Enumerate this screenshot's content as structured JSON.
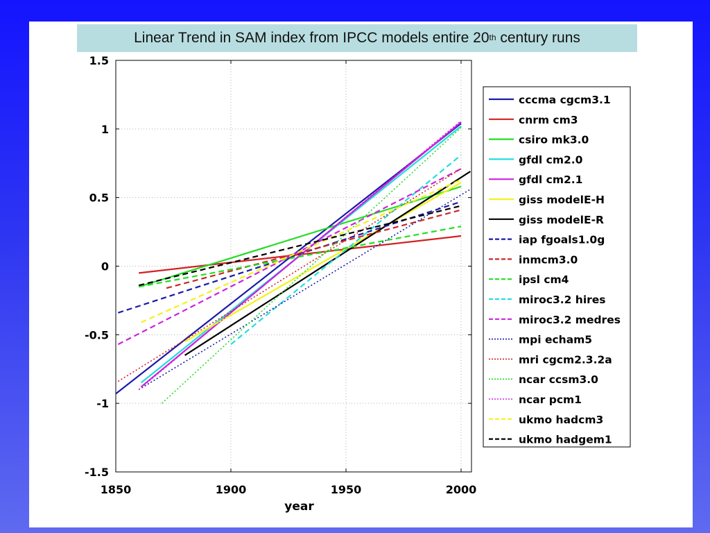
{
  "title": {
    "main": "Linear Trend in SAM index from IPCC models entire 20",
    "sup": "th",
    "tail": " century runs"
  },
  "chart_data": {
    "type": "line",
    "title": "Linear Trend in SAM index from IPCC models entire 20th century runs",
    "xlabel": "year",
    "ylabel": "",
    "xlim": [
      1850,
      2005
    ],
    "ylim": [
      -1.5,
      1.5
    ],
    "xticks": [
      1850,
      1900,
      1950,
      2000
    ],
    "yticks": [
      -1.5,
      -1,
      -0.5,
      0,
      0.5,
      1,
      1.5
    ],
    "xtick_labels": [
      "1850",
      "1900",
      "1950",
      "2000"
    ],
    "ytick_labels": [
      "-1.5",
      "-1",
      "-0.5",
      "0",
      "0.5",
      "1",
      "1.5"
    ],
    "grid": true,
    "legend_position": "right",
    "series": [
      {
        "name": "cccma cgcm3.1",
        "color": "#1a1aa8",
        "style": "solid",
        "x": [
          1850,
          2000
        ],
        "y": [
          -0.93,
          1.04
        ]
      },
      {
        "name": "cnrm cm3",
        "color": "#d42020",
        "style": "solid",
        "x": [
          1860,
          2000
        ],
        "y": [
          -0.05,
          0.22
        ]
      },
      {
        "name": "csiro mk3.0",
        "color": "#22dd22",
        "style": "solid",
        "x": [
          1860,
          2000
        ],
        "y": [
          -0.15,
          0.58
        ]
      },
      {
        "name": "gfdl cm2.0",
        "color": "#22dddd",
        "style": "solid",
        "x": [
          1861,
          2000
        ],
        "y": [
          -0.85,
          1.02
        ]
      },
      {
        "name": "gfdl cm2.1",
        "color": "#cc22dd",
        "style": "solid",
        "x": [
          1861,
          2000
        ],
        "y": [
          -0.88,
          1.05
        ]
      },
      {
        "name": "giss modelE-H",
        "color": "#f2f21a",
        "style": "solid",
        "x": [
          1880,
          2000
        ],
        "y": [
          -0.55,
          0.61
        ]
      },
      {
        "name": "giss modelE-R",
        "color": "#000000",
        "style": "solid",
        "x": [
          1880,
          2004
        ],
        "y": [
          -0.65,
          0.69
        ]
      },
      {
        "name": "iap fgoals1.0g",
        "color": "#1a1aa8",
        "style": "dashed",
        "x": [
          1851,
          2000
        ],
        "y": [
          -0.34,
          0.47
        ]
      },
      {
        "name": "inmcm3.0",
        "color": "#c82828",
        "style": "dashed",
        "x": [
          1872,
          2000
        ],
        "y": [
          -0.16,
          0.41
        ]
      },
      {
        "name": "ipsl cm4",
        "color": "#22dd22",
        "style": "dashed",
        "x": [
          1860,
          2000
        ],
        "y": [
          -0.15,
          0.29
        ]
      },
      {
        "name": "miroc3.2 hires",
        "color": "#22dddd",
        "style": "dashed",
        "x": [
          1900,
          2000
        ],
        "y": [
          -0.57,
          0.81
        ]
      },
      {
        "name": "miroc3.2 medres",
        "color": "#cc22dd",
        "style": "dashed",
        "x": [
          1851,
          2000
        ],
        "y": [
          -0.57,
          0.71
        ]
      },
      {
        "name": "mpi echam5",
        "color": "#1a1aa8",
        "style": "dotted",
        "x": [
          1860,
          2004
        ],
        "y": [
          -0.9,
          0.56
        ]
      },
      {
        "name": "mri cgcm2.3.2a",
        "color": "#d42020",
        "style": "dotted",
        "x": [
          1851,
          2000
        ],
        "y": [
          -0.84,
          0.71
        ]
      },
      {
        "name": "ncar ccsm3.0",
        "color": "#22dd22",
        "style": "dotted",
        "x": [
          1870,
          2000
        ],
        "y": [
          -1.0,
          1.01
        ]
      },
      {
        "name": "ncar pcm1",
        "color": "#cc22dd",
        "style": "dotted",
        "x": [
          1860,
          2000
        ],
        "y": [
          -0.9,
          1.06
        ]
      },
      {
        "name": "ukmo hadcm3",
        "color": "#f2f21a",
        "style": "dashed",
        "x": [
          1861,
          2000
        ],
        "y": [
          -0.41,
          0.63
        ]
      },
      {
        "name": "ukmo hadgem1",
        "color": "#000000",
        "style": "dashed",
        "x": [
          1860,
          2000
        ],
        "y": [
          -0.14,
          0.44
        ]
      }
    ]
  }
}
